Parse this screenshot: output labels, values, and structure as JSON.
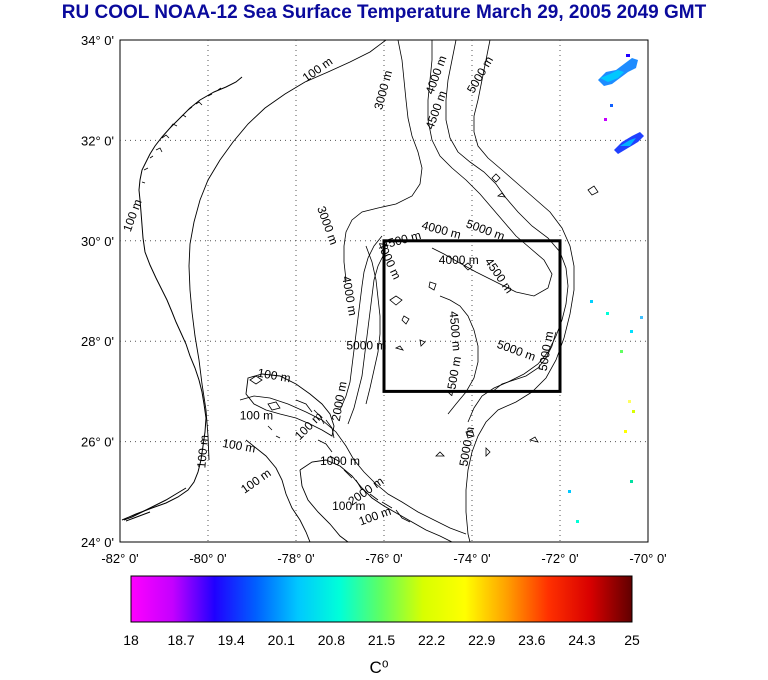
{
  "title": "RU COOL  NOAA-12 Sea Surface Temperature March 29, 2005 2049 GMT",
  "map": {
    "lon_range": [
      -82,
      -70
    ],
    "lat_range": [
      24,
      34
    ],
    "lon_ticks": [
      "-82° 0'",
      "-80° 0'",
      "-78° 0'",
      "-76° 0'",
      "-74° 0'",
      "-72° 0'",
      "-70° 0'"
    ],
    "lat_ticks": [
      "24° 0'",
      "26° 0'",
      "28° 0'",
      "30° 0'",
      "32° 0'",
      "34° 0'"
    ],
    "grid": "dotted",
    "study_box": {
      "lon_min": -76,
      "lon_max": -72,
      "lat_min": 27,
      "lat_max": 30
    },
    "contour_labels": [
      {
        "text": "100 m",
        "lon": -77.5,
        "lat": 33.4,
        "rot": -35
      },
      {
        "text": "3000 m",
        "lon": -76.0,
        "lat": 33.0,
        "rot": -75
      },
      {
        "text": "4000 m",
        "lon": -74.8,
        "lat": 33.3,
        "rot": -70
      },
      {
        "text": "4500 m",
        "lon": -74.8,
        "lat": 32.6,
        "rot": -70
      },
      {
        "text": "5000 m",
        "lon": -73.8,
        "lat": 33.3,
        "rot": -60
      },
      {
        "text": "100 m",
        "lon": -81.7,
        "lat": 30.5,
        "rot": -70
      },
      {
        "text": "3000 m",
        "lon": -77.3,
        "lat": 30.3,
        "rot": 70
      },
      {
        "text": "4500 m",
        "lon": -75.6,
        "lat": 30.0,
        "rot": -15
      },
      {
        "text": "4000 m",
        "lon": -74.7,
        "lat": 30.2,
        "rot": 15
      },
      {
        "text": "5000 m",
        "lon": -73.7,
        "lat": 30.2,
        "rot": 20
      },
      {
        "text": "4000 m",
        "lon": -74.3,
        "lat": 29.6,
        "rot": 0
      },
      {
        "text": "4500 m",
        "lon": -73.4,
        "lat": 29.3,
        "rot": 55
      },
      {
        "text": "4000 m",
        "lon": -75.9,
        "lat": 29.6,
        "rot": 65
      },
      {
        "text": "4000 m",
        "lon": -76.8,
        "lat": 28.9,
        "rot": 80
      },
      {
        "text": "4500 m",
        "lon": -74.4,
        "lat": 28.2,
        "rot": 85
      },
      {
        "text": "5000 m",
        "lon": -76.4,
        "lat": 27.9,
        "rot": 0
      },
      {
        "text": "5000 m",
        "lon": -73.0,
        "lat": 27.8,
        "rot": 20
      },
      {
        "text": "5000 m",
        "lon": -72.3,
        "lat": 27.8,
        "rot": -80
      },
      {
        "text": "4500 m",
        "lon": -74.4,
        "lat": 27.3,
        "rot": -80
      },
      {
        "text": "100 m",
        "lon": -78.5,
        "lat": 27.3,
        "rot": 10
      },
      {
        "text": "100 m",
        "lon": -78.9,
        "lat": 26.5,
        "rot": 0
      },
      {
        "text": "100 m",
        "lon": -77.7,
        "lat": 26.3,
        "rot": -45
      },
      {
        "text": "2000 m",
        "lon": -77.0,
        "lat": 26.8,
        "rot": -80
      },
      {
        "text": "100 m",
        "lon": -79.3,
        "lat": 25.9,
        "rot": 10
      },
      {
        "text": "100 m",
        "lon": -80.1,
        "lat": 25.8,
        "rot": -85
      },
      {
        "text": "1000 m",
        "lon": -77.0,
        "lat": 25.6,
        "rot": 0
      },
      {
        "text": "100 m",
        "lon": -78.9,
        "lat": 25.2,
        "rot": -35
      },
      {
        "text": "2000 m",
        "lon": -76.4,
        "lat": 25.0,
        "rot": -35
      },
      {
        "text": "100 m",
        "lon": -76.8,
        "lat": 24.7,
        "rot": 0
      },
      {
        "text": "100 m",
        "lon": -76.2,
        "lat": 24.5,
        "rot": -20
      },
      {
        "text": "5000 m",
        "lon": -74.1,
        "lat": 25.9,
        "rot": -80
      }
    ]
  },
  "colorbar": {
    "min": 18,
    "max": 25,
    "labels": [
      "18",
      "18.7",
      "19.4",
      "20.1",
      "20.8",
      "21.5",
      "22.2",
      "22.9",
      "23.6",
      "24.3",
      "25"
    ],
    "unit": "C⁰",
    "colors": [
      "#ff00ff",
      "#c400ff",
      "#2000ff",
      "#0060ff",
      "#00c8ff",
      "#00ffd8",
      "#60ff60",
      "#d8ff00",
      "#ffff00",
      "#ffa000",
      "#ff3000",
      "#d80000",
      "#600000"
    ]
  }
}
